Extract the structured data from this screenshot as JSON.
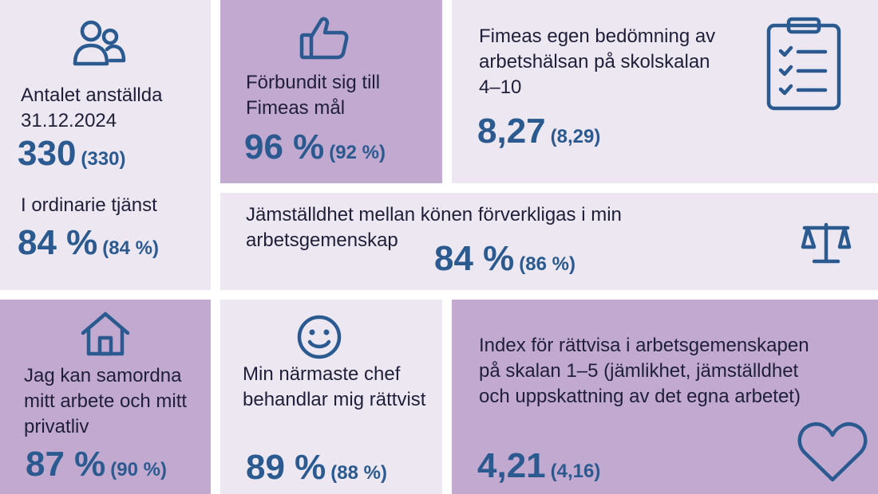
{
  "employees": {
    "label": "Antalet anställda 31.12.2024",
    "value": "330",
    "previous": "(330)"
  },
  "permanent": {
    "label": "I ordinarie tjänst",
    "value": "84 %",
    "previous": "(84 %)"
  },
  "committed": {
    "label": "Förbundit sig till Fimeas mål",
    "value": "96 %",
    "previous": "(92 %)"
  },
  "workhealth": {
    "label": "Fimeas egen bedömning av arbetshälsan på skolskalan 4–10",
    "value": "8,27",
    "previous": "(8,29)"
  },
  "equality": {
    "label": "Jämställdhet mellan könen förverkligas i min arbetsgemenskap",
    "value": "84 %",
    "previous": "(86 %)"
  },
  "worklife": {
    "label": "Jag kan samordna mitt arbete och mitt privatliv",
    "value": "87 %",
    "previous": "(90 %)"
  },
  "manager": {
    "label": "Min närmaste chef behandlar mig rättvist",
    "value": "89 %",
    "previous": "(88 %)"
  },
  "fairness": {
    "label": "Index för rättvisa i arbetsgemenskapen på skalan 1–5 (jämlikhet, jämställdhet och uppskattning av det egna arbetet)",
    "value": "4,21",
    "previous": "(4,16)"
  },
  "icons": {
    "employees": "people-icon",
    "committed": "thumbs-up-icon",
    "workhealth": "clipboard-checklist-icon",
    "equality": "scales-icon",
    "worklife": "house-icon",
    "manager": "smiley-icon",
    "fairness": "heart-icon"
  },
  "colors": {
    "light_tile": "#ece7f1",
    "dark_tile": "#c1a9cf",
    "accent": "#2a5a8f",
    "text": "#1f1f3a"
  }
}
